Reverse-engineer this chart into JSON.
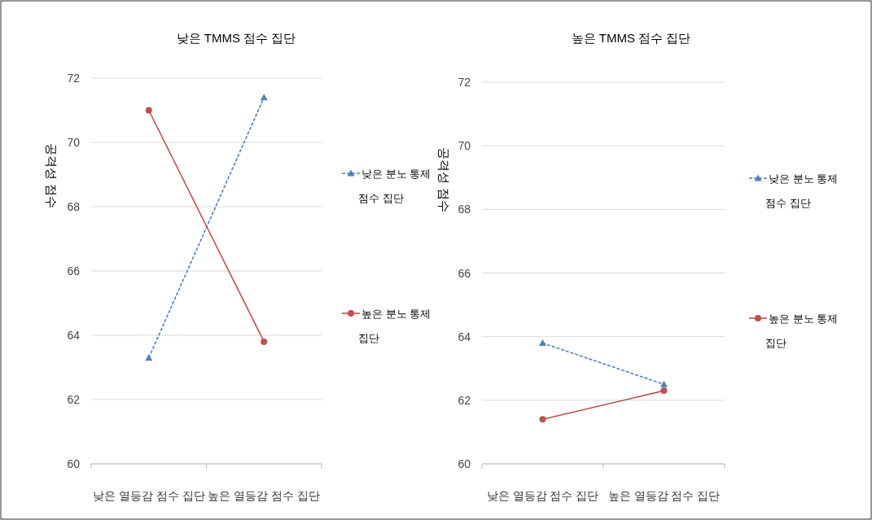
{
  "chart_data": [
    {
      "type": "line",
      "title": "낮은 TMMS 점수 집단",
      "ylabel": "공격성 점수",
      "categories": [
        "낮은 열등감 점수 집단",
        "높은 열등감 점수 집단"
      ],
      "ylim": [
        60,
        72
      ],
      "yticks": [
        60,
        62,
        64,
        66,
        68,
        70,
        72
      ],
      "grid": "y",
      "legend": "right",
      "series": [
        {
          "name": "낮은 분노 통제 점수 집단",
          "color": "#4f81bd",
          "values": [
            63.3,
            71.4
          ],
          "marker": "triangle",
          "line_style": "dashed"
        },
        {
          "name": "높은 분노 통제 집단",
          "color": "#c0504d",
          "values": [
            71.0,
            63.8
          ],
          "marker": "circle",
          "line_style": "solid"
        }
      ]
    },
    {
      "type": "line",
      "title": "높은 TMMS 점수 집단",
      "ylabel": "공격성 점수",
      "categories": [
        "낮은 열등감 점수 집단",
        "높은 열등감 점수 집단"
      ],
      "ylim": [
        60,
        72
      ],
      "yticks": [
        60,
        62,
        64,
        66,
        68,
        70,
        72
      ],
      "grid": "y",
      "legend": "right",
      "series": [
        {
          "name": "낮은 분노 통제 점수 집단",
          "color": "#4f81bd",
          "values": [
            63.8,
            62.5
          ],
          "marker": "triangle",
          "line_style": "dashed"
        },
        {
          "name": "높은 분노 통제 집단",
          "color": "#c0504d",
          "values": [
            61.4,
            62.3
          ],
          "marker": "circle",
          "line_style": "solid"
        }
      ]
    }
  ]
}
